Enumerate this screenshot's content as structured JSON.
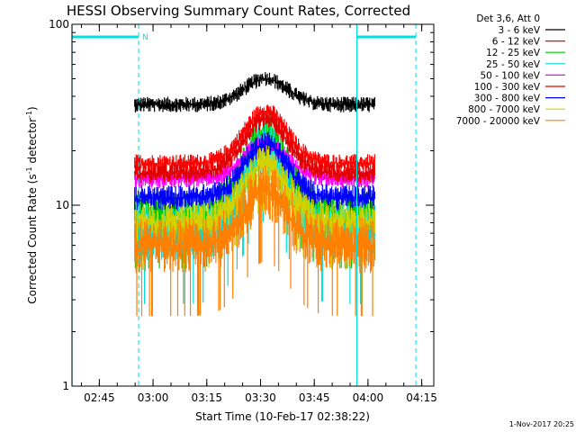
{
  "chart_data": {
    "type": "line",
    "title": "HESSI Observing Summary Count Rates, Corrected",
    "xlabel": "Start Time (10-Feb-17 02:38:22)",
    "ylabel_main": "Corrected Count Rate (s",
    "ylabel_sup1": "-1",
    "ylabel_mid": " detector",
    "ylabel_sup2": "-1",
    "ylabel_end": ")",
    "y_scale": "log",
    "ylim": [
      1,
      100
    ],
    "xlim_minutes": [
      0,
      101
    ],
    "x_ticks": [
      {
        "m": 7.63,
        "label": "02:45"
      },
      {
        "m": 22.63,
        "label": "03:00"
      },
      {
        "m": 37.63,
        "label": "03:15"
      },
      {
        "m": 52.63,
        "label": "03:30"
      },
      {
        "m": 67.63,
        "label": "03:45"
      },
      {
        "m": 82.63,
        "label": "04:00"
      },
      {
        "m": 97.63,
        "label": "04:15"
      }
    ],
    "y_ticks": [
      {
        "v": 1,
        "label": "1"
      },
      {
        "v": 10,
        "label": "10"
      },
      {
        "v": 100,
        "label": "100"
      }
    ],
    "data_range_minutes": [
      17.5,
      84.5
    ],
    "peak_minute": 54,
    "legend_header": "Det 3,6, Att 0",
    "series": [
      {
        "name": "3 - 6 keV",
        "color": "#000000",
        "base": 36,
        "peak": 50,
        "noise": 0.05
      },
      {
        "name": "6 - 12 keV",
        "color": "#ff0000",
        "base": 17,
        "peak": 33,
        "noise": 0.06
      },
      {
        "name": "12 - 25 keV",
        "color": "#00c800",
        "base": 9,
        "peak": 25,
        "noise": 0.14
      },
      {
        "name": "25 - 50 keV",
        "color": "#00dcdc",
        "base": 7,
        "peak": 20,
        "noise": 0.18
      },
      {
        "name": "50 - 100 keV",
        "color": "#ff00ff",
        "base": 14,
        "peak": 22,
        "noise": 0.06
      },
      {
        "name": "100 - 300 keV",
        "color": "#e00000",
        "base": 15,
        "peak": 30,
        "noise": 0.06
      },
      {
        "name": "300 - 800 keV",
        "color": "#0000ff",
        "base": 11,
        "peak": 22,
        "noise": 0.08
      },
      {
        "name": "800 - 7000 keV",
        "color": "#d2d200",
        "base": 8,
        "peak": 17,
        "noise": 0.12
      },
      {
        "name": "7000 - 20000 keV",
        "color": "#ff8000",
        "base": 6,
        "peak": 12,
        "noise": 0.18
      }
    ],
    "flag_label": "N",
    "attenuator_bars": [
      {
        "from_m": 0,
        "to_m": 18.6
      },
      {
        "from_m": 79.5,
        "to_m": 96
      }
    ],
    "solid_vlines_m": [
      0,
      79.5
    ],
    "dashed_vlines_m": [
      18.6,
      96
    ],
    "grid": false,
    "legend_position": "top-right"
  },
  "footer_stamp": "1-Nov-2017 20:25"
}
